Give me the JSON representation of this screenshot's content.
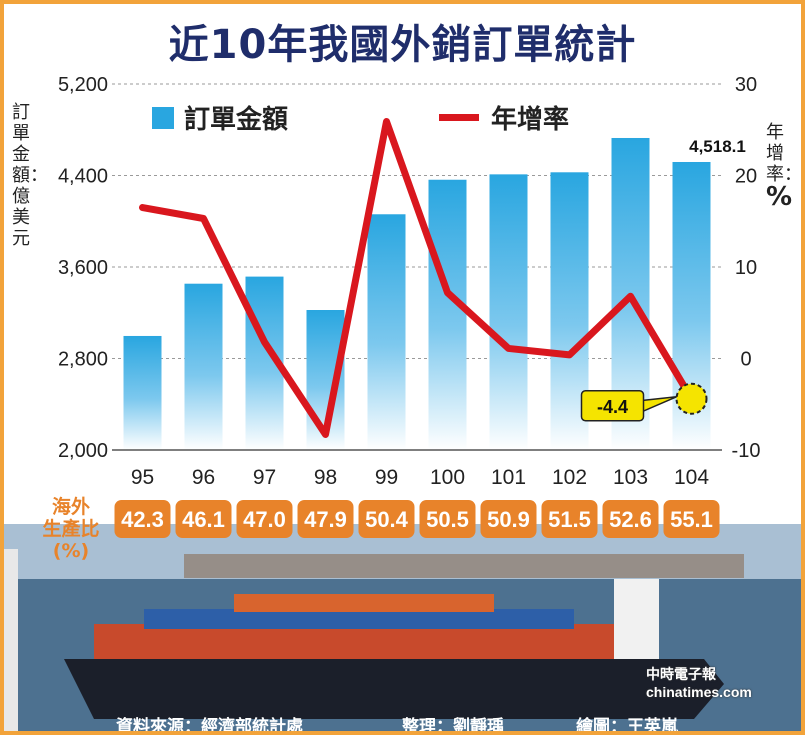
{
  "title": "近10年我國外銷訂單統計",
  "legend": {
    "bar_label": "訂單金額",
    "line_label": "年增率"
  },
  "left_axis_label": "訂單金額：億美元",
  "right_axis_label": "年增率：",
  "right_axis_unit": "%",
  "band_title": [
    "海外",
    "生產比",
    "(%)"
  ],
  "callout_value": "-4.4",
  "last_bar_label": "4,518.1",
  "source": {
    "data": "資料來源：經濟部統計處",
    "editor": "整理：劉靜瑀",
    "artist": "繪圖：王英嵐"
  },
  "watermark": "中時電子報 chinatimes.com",
  "colors": {
    "bar": "#29a6e0",
    "line": "#d9171e",
    "title": "#1f2d6b",
    "badge": "#e8832a",
    "callout": "#f5e400",
    "frame": "#f2a33a"
  },
  "chart_data": {
    "type": "bar",
    "title": "近10年我國外銷訂單統計",
    "categories": [
      "95",
      "96",
      "97",
      "98",
      "99",
      "100",
      "101",
      "102",
      "103",
      "104"
    ],
    "ylabel": "訂單金額：億美元",
    "y2label": "年增率：%",
    "ylim": [
      2000,
      5200
    ],
    "y2lim": [
      -10,
      30
    ],
    "yticks": [
      2000,
      2800,
      3600,
      4400,
      5200
    ],
    "y2ticks": [
      -10,
      0,
      10,
      20,
      30
    ],
    "yticklabels": [
      "2,000",
      "2,800",
      "3,600",
      "4,400",
      "5,200"
    ],
    "y2ticklabels": [
      "-10",
      "0",
      "10",
      "20",
      "30"
    ],
    "grid": true,
    "series": [
      {
        "name": "訂單金額",
        "type": "bar",
        "axis": "left",
        "values": [
          2997,
          3454,
          3516,
          3224,
          4061,
          4363,
          4410,
          4428,
          4728,
          4518.1
        ]
      },
      {
        "name": "年增率",
        "type": "line",
        "axis": "right",
        "values": [
          16.5,
          15.3,
          1.8,
          -8.3,
          25.9,
          7.2,
          1.1,
          0.4,
          6.8,
          -4.4
        ]
      }
    ],
    "overseas_production_ratio": {
      "label": "海外生產比(%)",
      "values": [
        "42.3",
        "46.1",
        "47.0",
        "47.9",
        "50.4",
        "50.5",
        "50.9",
        "51.5",
        "52.6",
        "55.1"
      ]
    },
    "annotations": [
      "4,518.1",
      "-4.4"
    ]
  }
}
